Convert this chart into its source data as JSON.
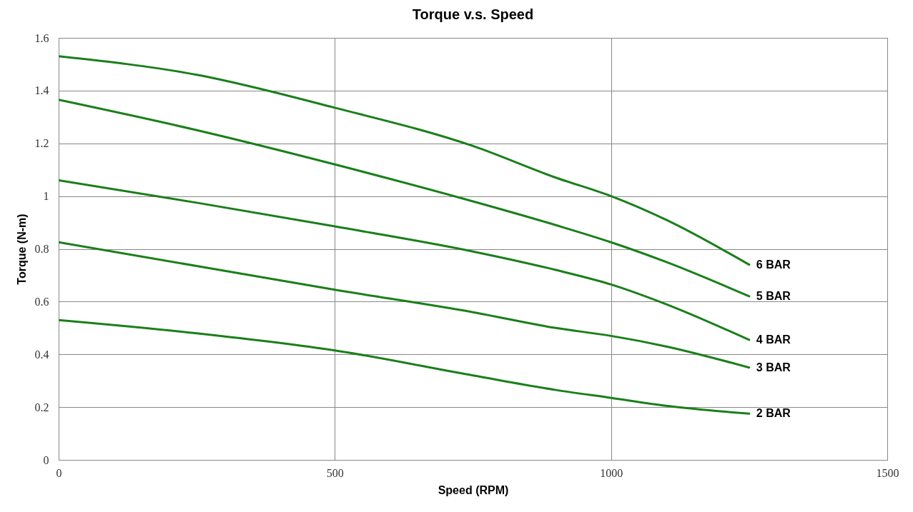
{
  "chart_data": {
    "type": "line",
    "title": "Torque v.s. Speed",
    "xlabel": "Speed (RPM)",
    "ylabel": "Torque (N-m)",
    "xlim": [
      0,
      1500
    ],
    "xticks": [
      0,
      500,
      1000,
      1500
    ],
    "ylim": [
      0,
      1.6
    ],
    "yticks": [
      0,
      0.2,
      0.4,
      0.6,
      0.8,
      1,
      1.2,
      1.4,
      1.6
    ],
    "grid": true,
    "legend": false,
    "x": [
      0,
      250,
      500,
      750,
      900,
      1000,
      1100,
      1250
    ],
    "series": [
      {
        "name": "6 BAR",
        "color": "#1a7f1a",
        "values": [
          1.53,
          1.46,
          1.335,
          1.19,
          1.07,
          1.0,
          0.91,
          0.74
        ]
      },
      {
        "name": "5 BAR",
        "color": "#1a7f1a",
        "values": [
          1.365,
          1.25,
          1.12,
          0.98,
          0.89,
          0.825,
          0.75,
          0.62
        ]
      },
      {
        "name": "4 BAR",
        "color": "#1a7f1a",
        "values": [
          1.06,
          0.975,
          0.885,
          0.79,
          0.72,
          0.665,
          0.59,
          0.455
        ]
      },
      {
        "name": "3 BAR",
        "color": "#1a7f1a",
        "values": [
          0.825,
          0.735,
          0.645,
          0.56,
          0.5,
          0.47,
          0.43,
          0.35
        ]
      },
      {
        "name": "2 BAR",
        "color": "#1a7f1a",
        "values": [
          0.53,
          0.48,
          0.415,
          0.32,
          0.265,
          0.235,
          0.205,
          0.175
        ]
      }
    ]
  }
}
